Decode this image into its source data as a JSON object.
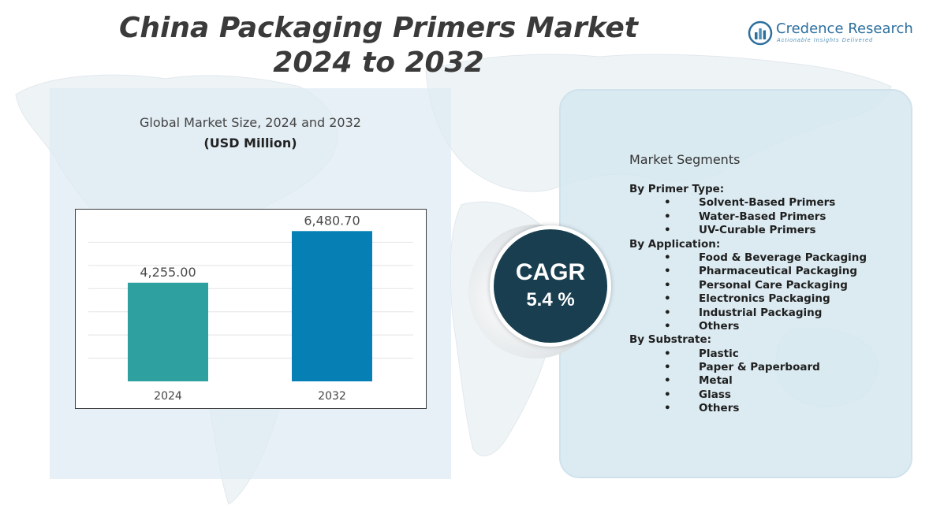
{
  "header": {
    "title_line1": "China Packaging Primers Market",
    "title_line2": "2024 to 2032"
  },
  "brand": {
    "name": "Credence Research",
    "tagline": "Actionable Insights Delivered"
  },
  "chart_panel": {
    "heading": "Global Market Size,  2024 and 2032",
    "subheading": "(USD Million)"
  },
  "chart_data": {
    "type": "bar",
    "categories": [
      "2024",
      "2032"
    ],
    "values": [
      4255.0,
      6480.7
    ],
    "value_labels": [
      "4,255.00",
      "6,480.70"
    ],
    "bar_colors": [
      "#2fa0a0",
      "#0680b4"
    ],
    "title": "Global Market Size,  2024 and 2032",
    "ylabel": "(USD Million)",
    "ylim": [
      0,
      7000
    ],
    "grid": true
  },
  "cagr": {
    "label": "CAGR",
    "value": "5.4 %"
  },
  "segments": {
    "title": "Market Segments",
    "groups": [
      {
        "label": "By Primer Type:",
        "items": [
          "Solvent-Based Primers",
          "Water-Based Primers",
          "UV-Curable Primers"
        ]
      },
      {
        "label": "By Application:",
        "items": [
          "Food & Beverage Packaging",
          "Pharmaceutical Packaging",
          "Personal Care Packaging",
          "Electronics Packaging",
          "Industrial Packaging",
          "Others"
        ]
      },
      {
        "label": " By Substrate:",
        "items": [
          "Plastic",
          "Paper & Paperboard",
          "Metal",
          "Glass",
          "Others"
        ]
      }
    ]
  },
  "colors": {
    "title_text": "#3a3a3a",
    "cagr_disc": "#183e4f",
    "brand_blue": "#2d6f9e"
  }
}
